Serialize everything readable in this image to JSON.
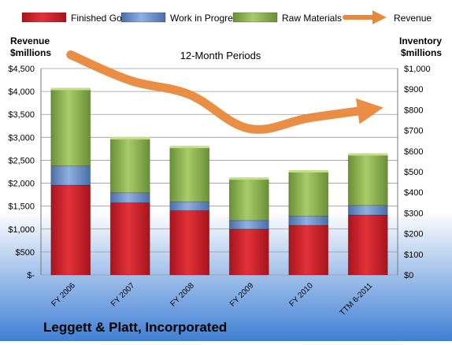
{
  "chart_data": {
    "type": "bar",
    "stacked": true,
    "subtitle": "12-Month Periods",
    "company": "Leggett & Platt, Incorporated",
    "left_axis_title": [
      "Revenue",
      "$millions"
    ],
    "right_axis_title": [
      "Inventory",
      "$millions"
    ],
    "categories": [
      "FY 2006",
      "FY 2007",
      "FY 2008",
      "FY 2009",
      "FY 2010",
      "TTM 6-2011"
    ],
    "series": [
      {
        "name": "Finished Goods",
        "axis": "right",
        "color": "#c8202a",
        "values": [
          435,
          350,
          312,
          222,
          240,
          290
        ]
      },
      {
        "name": "Work in Progress",
        "axis": "right",
        "color": "#5b82c4",
        "values": [
          93,
          48,
          42,
          42,
          45,
          47
        ]
      },
      {
        "name": "Raw Materials",
        "axis": "right",
        "color": "#8ab24a",
        "values": [
          371,
          262,
          264,
          201,
          215,
          245
        ]
      }
    ],
    "line_series": {
      "name": "Revenue",
      "axis": "left",
      "color": "#e8883a",
      "values": [
        4800,
        4240,
        3930,
        3190,
        3420,
        3600
      ]
    },
    "left_axis": {
      "min": 0,
      "max": 4500,
      "step": 500,
      "tick_labels": [
        "$-",
        "$500",
        "$1,000",
        "$1,500",
        "$2,000",
        "$2,500",
        "$3,000",
        "$3,500",
        "$4,000",
        "$4,500"
      ]
    },
    "right_axis": {
      "min": 0,
      "max": 1000,
      "step": 100,
      "tick_labels": [
        "$0",
        "$100",
        "$200",
        "$300",
        "$400",
        "$500",
        "$600",
        "$700",
        "$800",
        "$900",
        "$1,000"
      ]
    },
    "legend_position": "top"
  }
}
